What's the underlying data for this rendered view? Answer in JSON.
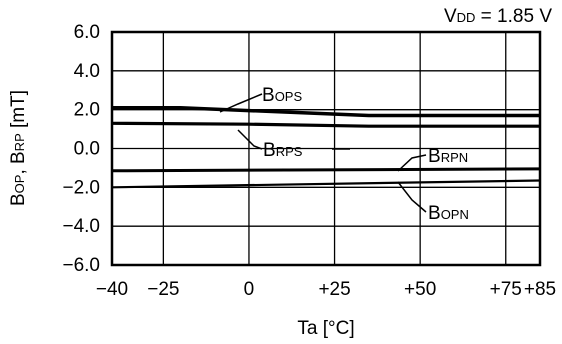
{
  "chart_data": {
    "type": "line",
    "condition": {
      "main": "V",
      "sub": "DD",
      "rest": " = 1.85 V"
    },
    "xlabel": "Ta [°C]",
    "ylabel": {
      "p1": "B",
      "s1": "OP",
      "p2": ", B",
      "s2": "RP",
      "p3": " [mT]"
    },
    "x_ticks": [
      {
        "value": -40,
        "label": "−40"
      },
      {
        "value": -25,
        "label": "−25"
      },
      {
        "value": 0,
        "label": "0"
      },
      {
        "value": 25,
        "label": "+25"
      },
      {
        "value": 50,
        "label": "+50"
      },
      {
        "value": 75,
        "label": "+75"
      },
      {
        "value": 85,
        "label": "+85"
      }
    ],
    "y_ticks": [
      {
        "value": 6,
        "label": "6.0"
      },
      {
        "value": 4,
        "label": "4.0"
      },
      {
        "value": 2,
        "label": "2.0"
      },
      {
        "value": 0,
        "label": "0.0"
      },
      {
        "value": -2,
        "label": "−2.0"
      },
      {
        "value": -4,
        "label": "−4.0"
      },
      {
        "value": -6,
        "label": "−6.0"
      }
    ],
    "xlim": [
      -40,
      85
    ],
    "ylim": [
      -6,
      6
    ],
    "grid": true,
    "series": [
      {
        "name": {
          "main": "B",
          "sub": "OPS"
        },
        "x": [
          -40,
          -20,
          0,
          35,
          85
        ],
        "y": [
          2.1,
          2.1,
          1.95,
          1.7,
          1.7
        ]
      },
      {
        "name": {
          "main": "B",
          "sub": "RPS"
        },
        "x": [
          -40,
          0,
          35,
          85
        ],
        "y": [
          1.3,
          1.25,
          1.15,
          1.15
        ]
      },
      {
        "name": {
          "main": "B",
          "sub": "RPN"
        },
        "x": [
          -40,
          85
        ],
        "y": [
          -1.15,
          -1.05
        ]
      },
      {
        "name": {
          "main": "B",
          "sub": "OPN"
        },
        "x": [
          -40,
          85
        ],
        "y": [
          -2.0,
          -1.65
        ]
      }
    ]
  }
}
